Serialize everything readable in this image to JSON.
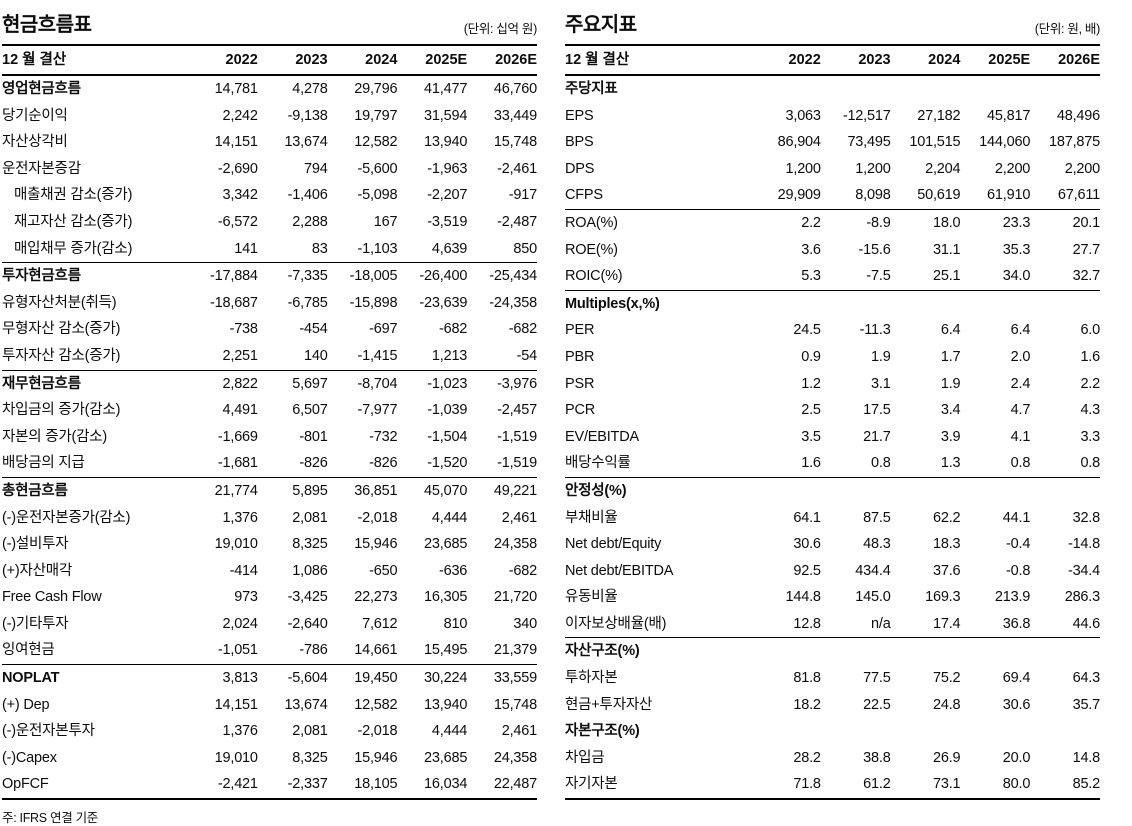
{
  "left_table": {
    "title": "현금흐름표",
    "unit": "(단위: 십억 원)",
    "note": "주: IFRS 연결 기준",
    "columns": [
      "12 월 결산",
      "2022",
      "2023",
      "2024",
      "2025E",
      "2026E"
    ],
    "rows": [
      {
        "label": "영업현금흐름",
        "style": "bold",
        "values": [
          "14,781",
          "4,278",
          "29,796",
          "41,477",
          "46,760"
        ]
      },
      {
        "label": "당기순이익",
        "values": [
          "2,242",
          "-9,138",
          "19,797",
          "31,594",
          "33,449"
        ]
      },
      {
        "label": "자산상각비",
        "values": [
          "14,151",
          "13,674",
          "12,582",
          "13,940",
          "15,748"
        ]
      },
      {
        "label": "운전자본증감",
        "values": [
          "-2,690",
          "794",
          "-5,600",
          "-1,963",
          "-2,461"
        ]
      },
      {
        "label": "매출채권 감소(증가)",
        "style": "indent",
        "values": [
          "3,342",
          "-1,406",
          "-5,098",
          "-2,207",
          "-917"
        ]
      },
      {
        "label": "재고자산 감소(증가)",
        "style": "indent",
        "values": [
          "-6,572",
          "2,288",
          "167",
          "-3,519",
          "-2,487"
        ]
      },
      {
        "label": "매입채무 증가(감소)",
        "style": "indent",
        "values": [
          "141",
          "83",
          "-1,103",
          "4,639",
          "850"
        ]
      },
      {
        "label": "투자현금흐름",
        "style": "bold",
        "sep": true,
        "values": [
          "-17,884",
          "-7,335",
          "-18,005",
          "-26,400",
          "-25,434"
        ]
      },
      {
        "label": "유형자산처분(취득)",
        "values": [
          "-18,687",
          "-6,785",
          "-15,898",
          "-23,639",
          "-24,358"
        ]
      },
      {
        "label": "무형자산 감소(증가)",
        "values": [
          "-738",
          "-454",
          "-697",
          "-682",
          "-682"
        ]
      },
      {
        "label": "투자자산 감소(증가)",
        "values": [
          "2,251",
          "140",
          "-1,415",
          "1,213",
          "-54"
        ]
      },
      {
        "label": "재무현금흐름",
        "style": "bold",
        "sep": true,
        "values": [
          "2,822",
          "5,697",
          "-8,704",
          "-1,023",
          "-3,976"
        ]
      },
      {
        "label": "차입금의 증가(감소)",
        "values": [
          "4,491",
          "6,507",
          "-7,977",
          "-1,039",
          "-2,457"
        ]
      },
      {
        "label": "자본의 증가(감소)",
        "values": [
          "-1,669",
          "-801",
          "-732",
          "-1,504",
          "-1,519"
        ]
      },
      {
        "label": "배당금의 지급",
        "values": [
          "-1,681",
          "-826",
          "-826",
          "-1,520",
          "-1,519"
        ]
      },
      {
        "label": "총현금흐름",
        "style": "bold",
        "sep": true,
        "values": [
          "21,774",
          "5,895",
          "36,851",
          "45,070",
          "49,221"
        ]
      },
      {
        "label": "(-)운전자본증가(감소)",
        "values": [
          "1,376",
          "2,081",
          "-2,018",
          "4,444",
          "2,461"
        ]
      },
      {
        "label": "(-)설비투자",
        "values": [
          "19,010",
          "8,325",
          "15,946",
          "23,685",
          "24,358"
        ]
      },
      {
        "label": "(+)자산매각",
        "values": [
          "-414",
          "1,086",
          "-650",
          "-636",
          "-682"
        ]
      },
      {
        "label": "Free Cash Flow",
        "values": [
          "973",
          "-3,425",
          "22,273",
          "16,305",
          "21,720"
        ]
      },
      {
        "label": "(-)기타투자",
        "values": [
          "2,024",
          "-2,640",
          "7,612",
          "810",
          "340"
        ]
      },
      {
        "label": "잉여현금",
        "values": [
          "-1,051",
          "-786",
          "14,661",
          "15,495",
          "21,379"
        ]
      },
      {
        "label": "NOPLAT",
        "style": "bold",
        "sep": true,
        "values": [
          "3,813",
          "-5,604",
          "19,450",
          "30,224",
          "33,559"
        ]
      },
      {
        "label": "(+) Dep",
        "values": [
          "14,151",
          "13,674",
          "12,582",
          "13,940",
          "15,748"
        ]
      },
      {
        "label": "(-)운전자본투자",
        "values": [
          "1,376",
          "2,081",
          "-2,018",
          "4,444",
          "2,461"
        ]
      },
      {
        "label": "(-)Capex",
        "values": [
          "19,010",
          "8,325",
          "15,946",
          "23,685",
          "24,358"
        ]
      },
      {
        "label": "OpFCF",
        "values": [
          "-2,421",
          "-2,337",
          "18,105",
          "16,034",
          "22,487"
        ]
      }
    ]
  },
  "right_table": {
    "title": "주요지표",
    "unit": "(단위: 원, 배)",
    "columns": [
      "12 월 결산",
      "2022",
      "2023",
      "2024",
      "2025E",
      "2026E"
    ],
    "rows": [
      {
        "label": "주당지표",
        "style": "section",
        "values": [
          "",
          "",
          "",
          "",
          ""
        ]
      },
      {
        "label": "EPS",
        "values": [
          "3,063",
          "-12,517",
          "27,182",
          "45,817",
          "48,496"
        ]
      },
      {
        "label": "BPS",
        "values": [
          "86,904",
          "73,495",
          "101,515",
          "144,060",
          "187,875"
        ]
      },
      {
        "label": "DPS",
        "values": [
          "1,200",
          "1,200",
          "2,204",
          "2,200",
          "2,200"
        ]
      },
      {
        "label": "CFPS",
        "values": [
          "29,909",
          "8,098",
          "50,619",
          "61,910",
          "67,611"
        ]
      },
      {
        "label": "ROA(%)",
        "sep": true,
        "values": [
          "2.2",
          "-8.9",
          "18.0",
          "23.3",
          "20.1"
        ]
      },
      {
        "label": "ROE(%)",
        "values": [
          "3.6",
          "-15.6",
          "31.1",
          "35.3",
          "27.7"
        ]
      },
      {
        "label": "ROIC(%)",
        "values": [
          "5.3",
          "-7.5",
          "25.1",
          "34.0",
          "32.7"
        ]
      },
      {
        "label": "Multiples(x,%)",
        "style": "section",
        "sep": true,
        "values": [
          "",
          "",
          "",
          "",
          ""
        ]
      },
      {
        "label": "PER",
        "values": [
          "24.5",
          "-11.3",
          "6.4",
          "6.4",
          "6.0"
        ]
      },
      {
        "label": "PBR",
        "values": [
          "0.9",
          "1.9",
          "1.7",
          "2.0",
          "1.6"
        ]
      },
      {
        "label": "PSR",
        "values": [
          "1.2",
          "3.1",
          "1.9",
          "2.4",
          "2.2"
        ]
      },
      {
        "label": "PCR",
        "values": [
          "2.5",
          "17.5",
          "3.4",
          "4.7",
          "4.3"
        ]
      },
      {
        "label": "EV/EBITDA",
        "values": [
          "3.5",
          "21.7",
          "3.9",
          "4.1",
          "3.3"
        ]
      },
      {
        "label": "배당수익률",
        "values": [
          "1.6",
          "0.8",
          "1.3",
          "0.8",
          "0.8"
        ]
      },
      {
        "label": "안정성(%)",
        "style": "section",
        "sep": true,
        "values": [
          "",
          "",
          "",
          "",
          ""
        ]
      },
      {
        "label": "부채비율",
        "values": [
          "64.1",
          "87.5",
          "62.2",
          "44.1",
          "32.8"
        ]
      },
      {
        "label": "Net debt/Equity",
        "values": [
          "30.6",
          "48.3",
          "18.3",
          "-0.4",
          "-14.8"
        ]
      },
      {
        "label": "Net debt/EBITDA",
        "values": [
          "92.5",
          "434.4",
          "37.6",
          "-0.8",
          "-34.4"
        ]
      },
      {
        "label": "유동비율",
        "values": [
          "144.8",
          "145.0",
          "169.3",
          "213.9",
          "286.3"
        ]
      },
      {
        "label": "이자보상배율(배)",
        "values": [
          "12.8",
          "n/a",
          "17.4",
          "36.8",
          "44.6"
        ]
      },
      {
        "label": "자산구조(%)",
        "style": "section",
        "sep": true,
        "values": [
          "",
          "",
          "",
          "",
          ""
        ]
      },
      {
        "label": "투하자본",
        "values": [
          "81.8",
          "77.5",
          "75.2",
          "69.4",
          "64.3"
        ]
      },
      {
        "label": "현금+투자자산",
        "values": [
          "18.2",
          "22.5",
          "24.8",
          "30.6",
          "35.7"
        ]
      },
      {
        "label": "자본구조(%)",
        "style": "section",
        "values": [
          "",
          "",
          "",
          "",
          ""
        ]
      },
      {
        "label": "차입금",
        "values": [
          "28.2",
          "38.8",
          "26.9",
          "20.0",
          "14.8"
        ]
      },
      {
        "label": "자기자본",
        "values": [
          "71.8",
          "61.2",
          "73.1",
          "80.0",
          "85.2"
        ]
      }
    ]
  }
}
